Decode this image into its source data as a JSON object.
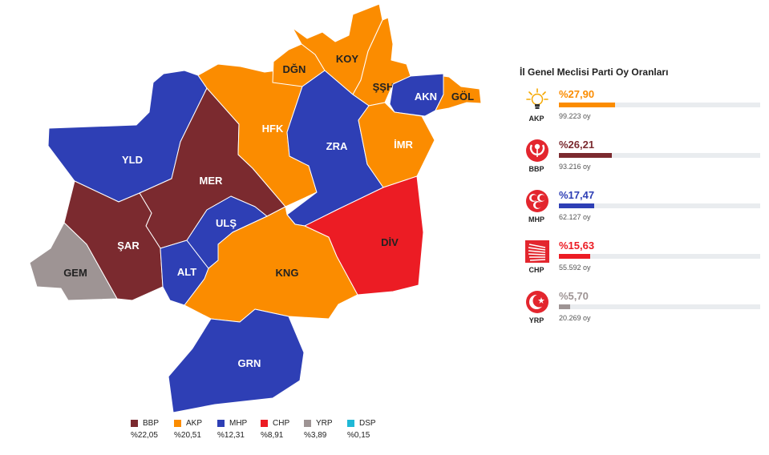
{
  "map": {
    "districts": [
      {
        "id": "yld",
        "label": "YLD",
        "party": "MHP"
      },
      {
        "id": "mer",
        "label": "MER",
        "party": "BBP"
      },
      {
        "id": "sar",
        "label": "ŞAR",
        "party": "BBP"
      },
      {
        "id": "gem",
        "label": "GEM",
        "party": "YRP"
      },
      {
        "id": "alt",
        "label": "ALT",
        "party": "MHP"
      },
      {
        "id": "uls",
        "label": "ULŞ",
        "party": "MHP"
      },
      {
        "id": "hfk",
        "label": "HFK",
        "party": "AKP"
      },
      {
        "id": "dgn",
        "label": "DĞN",
        "party": "AKP"
      },
      {
        "id": "koy",
        "label": "KOY",
        "party": "AKP"
      },
      {
        "id": "ssh",
        "label": "ŞŞH",
        "party": "AKP"
      },
      {
        "id": "zra",
        "label": "ZRA",
        "party": "MHP"
      },
      {
        "id": "akn",
        "label": "AKN",
        "party": "MHP"
      },
      {
        "id": "gol",
        "label": "GÖL",
        "party": "AKP"
      },
      {
        "id": "imr",
        "label": "İMR",
        "party": "AKP"
      },
      {
        "id": "kng",
        "label": "KNG",
        "party": "AKP"
      },
      {
        "id": "div",
        "label": "DİV",
        "party": "CHP"
      },
      {
        "id": "grn",
        "label": "GRN",
        "party": "MHP"
      }
    ]
  },
  "legend": [
    {
      "party": "BBP",
      "percent": "%22,05",
      "color": "#7b2a2f"
    },
    {
      "party": "AKP",
      "percent": "%20,51",
      "color": "#fb8c00"
    },
    {
      "party": "MHP",
      "percent": "%12,31",
      "color": "#2e3fb5"
    },
    {
      "party": "CHP",
      "percent": "%8,91",
      "color": "#ec1c24"
    },
    {
      "party": "YRP",
      "percent": "%3,89",
      "color": "#9e9494"
    },
    {
      "party": "DSP",
      "percent": "%0,15",
      "color": "#1fb8d6"
    }
  ],
  "panel": {
    "title": "İl Genel Meclisi Parti Oy Oranları",
    "parties": [
      {
        "abbr": "AKP",
        "percent": "%27,90",
        "share": 0.279,
        "votes": "99.223 oy",
        "color": "#fb8c00",
        "logo": "lightbulb-icon"
      },
      {
        "abbr": "BBP",
        "percent": "%26,21",
        "share": 0.2621,
        "votes": "93.216 oy",
        "color": "#7b2a2f",
        "logo": "rose-icon"
      },
      {
        "abbr": "MHP",
        "percent": "%17,47",
        "share": 0.1747,
        "votes": "62.127 oy",
        "color": "#2e3fb5",
        "logo": "three-crescents-icon"
      },
      {
        "abbr": "CHP",
        "percent": "%15,63",
        "share": 0.1563,
        "votes": "55.592 oy",
        "color": "#ec1c24",
        "logo": "six-arrows-icon"
      },
      {
        "abbr": "YRP",
        "percent": "%5,70",
        "share": 0.057,
        "votes": "20.269 oy",
        "color": "#9e9494",
        "logo": "crescent-icon"
      }
    ]
  }
}
